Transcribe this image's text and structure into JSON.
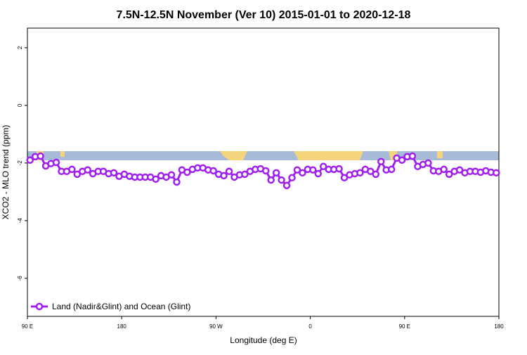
{
  "chart_data": {
    "type": "line",
    "title": "7.5N-12.5N November (Ver 10)   2015-01-01 to 2020-12-18",
    "x_label": "Longitude (deg E)",
    "y_label": "XCO2 - MLO trend (ppm)",
    "xlim": [
      90,
      540
    ],
    "ylim": [
      -7.32,
      2.68
    ],
    "xticks": [
      {
        "value": 90,
        "label": "90 E"
      },
      {
        "value": 180,
        "label": "180"
      },
      {
        "value": 270,
        "label": "90 W"
      },
      {
        "value": 360,
        "label": "0"
      },
      {
        "value": 450,
        "label": "90 E"
      },
      {
        "value": 540,
        "label": "180"
      }
    ],
    "yticks": [
      2,
      0,
      -2,
      -4,
      -6
    ],
    "legend_position": "bottom-left",
    "x": [
      92.5,
      97.5,
      102.5,
      107.5,
      112.5,
      117.5,
      122.5,
      127.5,
      132.5,
      137.5,
      142.5,
      147.5,
      152.5,
      157.5,
      162.5,
      167.5,
      172.5,
      177.5,
      182.5,
      187.5,
      192.5,
      197.5,
      202.5,
      207.5,
      212.5,
      217.5,
      222.5,
      227.5,
      232.5,
      237.5,
      242.5,
      247.5,
      252.5,
      257.5,
      262.5,
      267.5,
      272.5,
      277.5,
      282.5,
      287.5,
      292.5,
      297.5,
      302.5,
      307.5,
      312.5,
      317.5,
      322.5,
      327.5,
      332.5,
      337.5,
      342.5,
      347.5,
      352.5,
      357.5,
      362.5,
      367.5,
      372.5,
      377.5,
      382.5,
      387.5,
      392.5,
      397.5,
      402.5,
      407.5,
      412.5,
      417.5,
      422.5,
      427.5,
      432.5,
      437.5,
      442.5,
      447.5,
      452.5,
      457.5,
      462.5,
      467.5,
      472.5,
      477.5,
      482.5,
      487.5,
      492.5,
      497.5,
      502.5,
      507.5,
      512.5,
      517.5,
      522.5,
      527.5,
      532.5,
      537.5
    ],
    "series": [
      {
        "name": "Land (Nadir&Glint) and Ocean (Glint)",
        "color": "#a020f0",
        "values": [
          -1.9,
          -1.78,
          -1.76,
          -2.1,
          -2.02,
          -1.98,
          -2.29,
          -2.29,
          -2.22,
          -2.39,
          -2.29,
          -2.24,
          -2.37,
          -2.29,
          -2.29,
          -2.37,
          -2.34,
          -2.46,
          -2.39,
          -2.46,
          -2.49,
          -2.49,
          -2.49,
          -2.49,
          -2.56,
          -2.44,
          -2.49,
          -2.41,
          -2.66,
          -2.24,
          -2.32,
          -2.22,
          -2.17,
          -2.17,
          -2.24,
          -2.27,
          -2.39,
          -2.44,
          -2.29,
          -2.49,
          -2.41,
          -2.39,
          -2.29,
          -2.22,
          -2.2,
          -2.27,
          -2.59,
          -2.34,
          -2.59,
          -2.78,
          -2.51,
          -2.24,
          -2.34,
          -2.22,
          -2.24,
          -2.37,
          -2.12,
          -2.22,
          -2.22,
          -2.2,
          -2.51,
          -2.41,
          -2.37,
          -2.34,
          -2.22,
          -2.29,
          -2.39,
          -1.95,
          -2.24,
          -2.22,
          -1.83,
          -1.9,
          -1.78,
          -1.76,
          -2.12,
          -2.05,
          -2.0,
          -2.27,
          -2.29,
          -2.22,
          -2.39,
          -2.29,
          -2.24,
          -2.34,
          -2.29,
          -2.29,
          -2.32,
          -2.27,
          -2.32,
          -2.34
        ]
      }
    ]
  }
}
